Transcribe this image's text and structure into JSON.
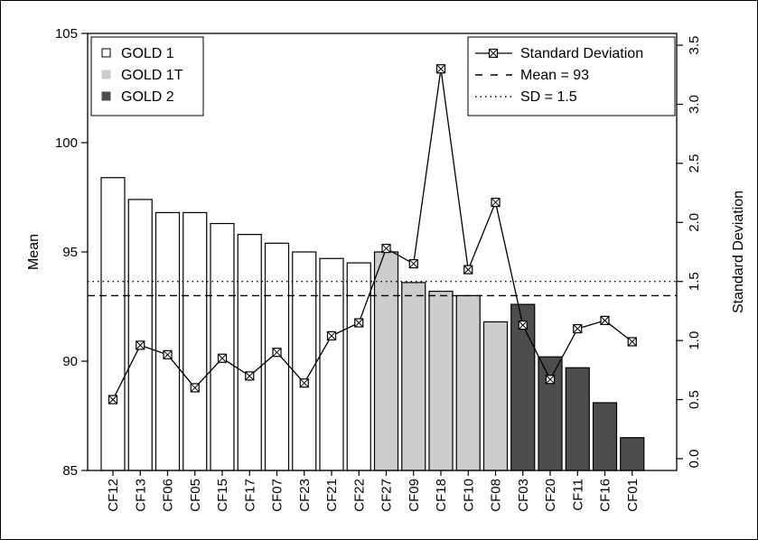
{
  "chart_data": {
    "type": "bar",
    "categories": [
      "CF12",
      "CF13",
      "CF06",
      "CF05",
      "CF15",
      "CF17",
      "CF07",
      "CF23",
      "CF21",
      "CF22",
      "CF27",
      "CF09",
      "CF18",
      "CF10",
      "CF08",
      "CF03",
      "CF20",
      "CF11",
      "CF16",
      "CF01"
    ],
    "groups": [
      "GOLD 1",
      "GOLD 1",
      "GOLD 1",
      "GOLD 1",
      "GOLD 1",
      "GOLD 1",
      "GOLD 1",
      "GOLD 1",
      "GOLD 1",
      "GOLD 1",
      "GOLD 1T",
      "GOLD 1T",
      "GOLD 1T",
      "GOLD 1T",
      "GOLD 1T",
      "GOLD 2",
      "GOLD 2",
      "GOLD 2",
      "GOLD 2",
      "GOLD 2"
    ],
    "mean_values": [
      98.4,
      97.4,
      96.8,
      96.8,
      96.3,
      95.8,
      95.4,
      95.0,
      94.7,
      94.5,
      95.0,
      93.6,
      93.2,
      93.0,
      91.8,
      92.6,
      90.2,
      89.7,
      88.1,
      86.5
    ],
    "sd_values": [
      0.5,
      0.96,
      0.88,
      0.6,
      0.85,
      0.7,
      0.9,
      0.64,
      1.04,
      1.15,
      1.78,
      1.65,
      3.3,
      1.6,
      2.17,
      1.13,
      0.67,
      1.1,
      1.17,
      0.99
    ],
    "ylabel": "Mean",
    "y2label": "Standard Deviation",
    "ylim": [
      85,
      105
    ],
    "y2lim": [
      -0.1,
      3.6
    ],
    "yticks": [
      "85",
      "90",
      "95",
      "100",
      "105"
    ],
    "y2ticks": [
      "0.0",
      "0.5",
      "1.0",
      "1.5",
      "2.0",
      "2.5",
      "3.0",
      "3.5"
    ],
    "mean_line": 93,
    "sd_line": 1.5,
    "legend_groups": [
      {
        "label": "GOLD 1",
        "color": "#ffffff"
      },
      {
        "label": "GOLD 1T",
        "color": "#cccccc"
      },
      {
        "label": "GOLD 2",
        "color": "#4d4d4d"
      }
    ],
    "legend_lines": [
      {
        "label": "Standard Deviation",
        "style": "line-marker"
      },
      {
        "label": "Mean = 93",
        "style": "dashed"
      },
      {
        "label": "SD = 1.5",
        "style": "dotted"
      }
    ],
    "grid": false
  }
}
